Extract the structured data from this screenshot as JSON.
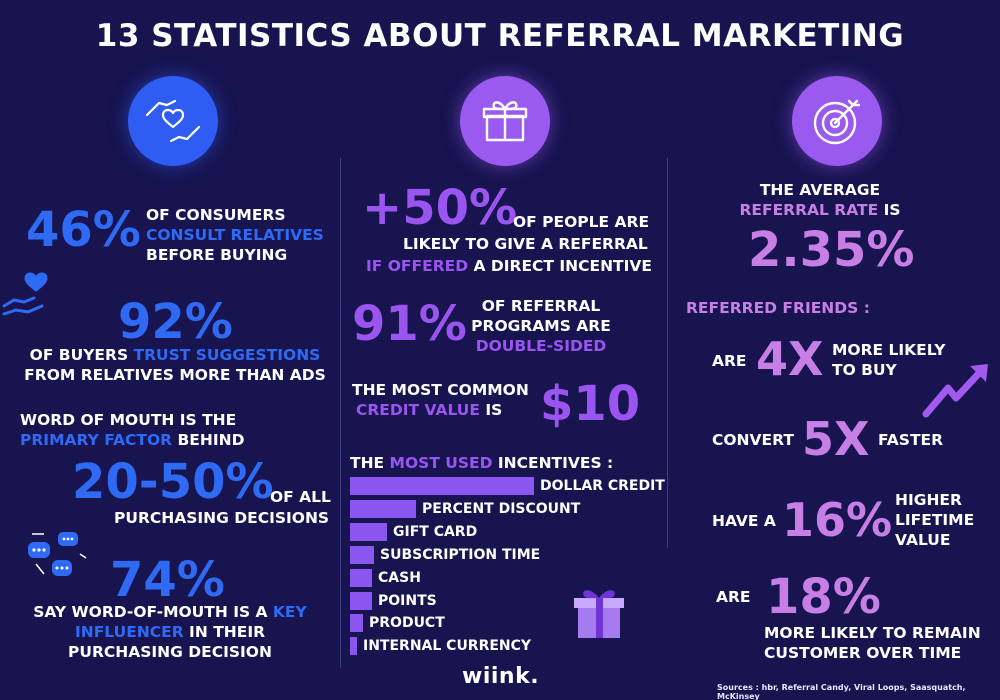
{
  "title": "13 STATISTICS ABOUT REFERRAL MARKETING",
  "colors": {
    "background": "#171450",
    "blue": "#2f6af5",
    "violet": "#9a55f0",
    "lilac": "#c77fe6"
  },
  "icons": [
    "handshake-heart-icon",
    "gift-icon",
    "target-icon",
    "hand-heart-icon",
    "chat-bubbles-icon",
    "trend-arrow-icon",
    "gift-box-icon"
  ],
  "col1": {
    "s1": {
      "value": "46%",
      "l1": "OF CONSUMERS",
      "l2": "CONSULT RELATIVES",
      "l3": "BEFORE BUYING"
    },
    "s2": {
      "value": "92%",
      "l1a": "OF BUYERS ",
      "l1b": "TRUST SUGGESTIONS",
      "l2": "FROM RELATIVES MORE THAN ADS"
    },
    "s3": {
      "l1": "WORD OF MOUTH IS THE",
      "l2a": "PRIMARY FACTOR",
      "l2b": " BEHIND",
      "value": "20-50%",
      "l3": "OF ALL",
      "l4": "PURCHASING DECISIONS"
    },
    "s4": {
      "value": "74%",
      "l1a": "SAY WORD-OF-MOUTH IS A ",
      "l1b": "KEY",
      "l2a": "INFLUENCER",
      "l2b": " IN THEIR",
      "l3": "PURCHASING DECISION"
    }
  },
  "col2": {
    "s1": {
      "value": "+50%",
      "l1": "OF PEOPLE ARE",
      "l2": "LIKELY TO GIVE A REFERRAL",
      "l3a": "IF OFFERED",
      "l3b": " A DIRECT INCENTIVE"
    },
    "s2": {
      "value": "91%",
      "l1": "OF REFERRAL",
      "l2": "PROGRAMS ARE",
      "l3": "DOUBLE-SIDED"
    },
    "s3": {
      "l1": "THE MOST COMMON",
      "l2a": "CREDIT  VALUE",
      "l2b": " IS",
      "value": "$10"
    },
    "incentives": {
      "heading_a": "THE ",
      "heading_b": "MOST USED",
      "heading_c": " INCENTIVES :",
      "items": [
        {
          "label": "DOLLAR CREDIT",
          "share": 1.0
        },
        {
          "label": "PERCENT DISCOUNT",
          "share": 0.36
        },
        {
          "label": "GIFT CARD",
          "share": 0.2
        },
        {
          "label": "SUBSCRIPTION TIME",
          "share": 0.13
        },
        {
          "label": "CASH",
          "share": 0.12
        },
        {
          "label": "POINTS",
          "share": 0.12
        },
        {
          "label": "PRODUCT",
          "share": 0.07
        },
        {
          "label": "INTERNAL CURRENCY",
          "share": 0.04
        }
      ]
    }
  },
  "col3": {
    "s1": {
      "l1": "THE AVERAGE",
      "l2a": "REFERRAL RATE",
      "l2b": " IS",
      "value": "2.35%"
    },
    "friends_heading": "REFERRED FRIENDS :",
    "s2": {
      "pre": "ARE",
      "value": "4X",
      "l1": "MORE LIKELY",
      "l2": "TO BUY"
    },
    "s3": {
      "pre": "CONVERT",
      "value": "5X",
      "post": "FASTER"
    },
    "s4": {
      "pre": "HAVE A",
      "value": "16%",
      "l1": "HIGHER",
      "l2": "LIFETIME",
      "l3": "VALUE"
    },
    "s5": {
      "pre": "ARE",
      "value": "18%",
      "l1": "MORE LIKELY TO REMAIN",
      "l2": "CUSTOMER OVER TIME"
    }
  },
  "logo": "wiink.",
  "sources": "Sources : hbr, Referral Candy, Viral Loops, Saasquatch, McKinsey"
}
